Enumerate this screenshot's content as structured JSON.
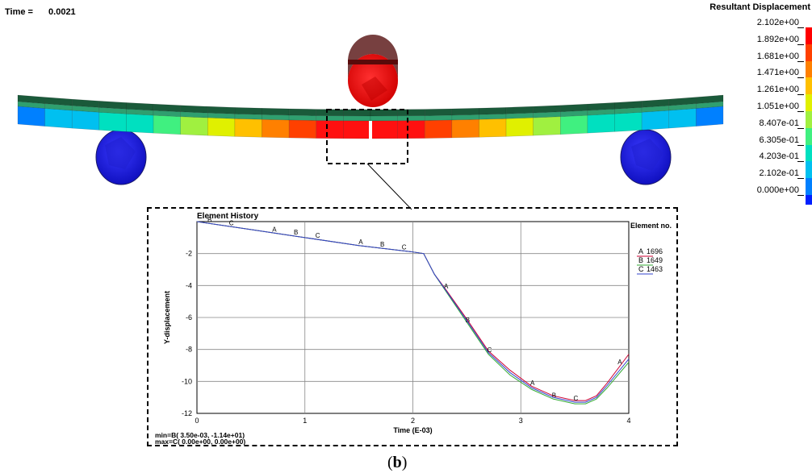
{
  "header": {
    "time_label": "Time =",
    "time_value": "0.0021"
  },
  "legend": {
    "title": "Resultant Displacement",
    "values": [
      "2.102e+00",
      "1.892e+00",
      "1.681e+00",
      "1.471e+00",
      "1.261e+00",
      "1.051e+00",
      "8.407e-01",
      "6.305e-01",
      "4.203e-01",
      "2.102e-01",
      "0.000e+00"
    ],
    "colors": [
      "#ff0000",
      "#ff4000",
      "#ff8000",
      "#ffc000",
      "#e0f000",
      "#a0f040",
      "#40f080",
      "#00e0c0",
      "#00c0f0",
      "#0080ff",
      "#0020ff"
    ]
  },
  "caption": {
    "open": "(",
    "letter": "b",
    "close": ")"
  },
  "chart_data": {
    "type": "line",
    "title": "Element History",
    "xlabel": "Time (E-03)",
    "ylabel": "Y-displacement",
    "xlim": [
      0,
      4
    ],
    "ylim": [
      -12,
      0
    ],
    "x_ticks": [
      0,
      1,
      2,
      3,
      4
    ],
    "y_ticks": [
      -2,
      -4,
      -6,
      -8,
      -10,
      -12
    ],
    "grid": true,
    "legend_title": "Element no.",
    "legend_position": "right",
    "series": [
      {
        "name": "1696",
        "marker": "A",
        "color": "#cc0033",
        "x": [
          0,
          0.5,
          1.0,
          1.5,
          2.0,
          2.1,
          2.2,
          2.3,
          2.5,
          2.7,
          2.9,
          3.1,
          3.3,
          3.5,
          3.6,
          3.7,
          3.8,
          4.0
        ],
        "y": [
          0,
          -0.5,
          -1.0,
          -1.5,
          -1.9,
          -2.0,
          -3.3,
          -4.2,
          -6.1,
          -8.1,
          -9.3,
          -10.3,
          -10.9,
          -11.2,
          -11.2,
          -10.9,
          -10.1,
          -8.3
        ],
        "marker_x": [
          0.72,
          1.52,
          2.31,
          3.11,
          3.92
        ]
      },
      {
        "name": "1649",
        "marker": "B",
        "color": "#33aa33",
        "x": [
          0,
          0.5,
          1.0,
          1.5,
          2.0,
          2.1,
          2.2,
          2.3,
          2.5,
          2.7,
          2.9,
          3.1,
          3.3,
          3.5,
          3.6,
          3.7,
          3.8,
          4.0
        ],
        "y": [
          0,
          -0.5,
          -1.0,
          -1.5,
          -1.9,
          -2.0,
          -3.3,
          -4.3,
          -6.3,
          -8.3,
          -9.6,
          -10.5,
          -11.1,
          -11.4,
          -11.4,
          -11.1,
          -10.4,
          -8.8
        ],
        "marker_x": [
          0.12,
          0.92,
          1.72,
          2.51,
          3.31
        ]
      },
      {
        "name": "1463",
        "marker": "C",
        "color": "#3344cc",
        "x": [
          0,
          0.5,
          1.0,
          1.5,
          2.0,
          2.1,
          2.2,
          2.3,
          2.5,
          2.7,
          2.9,
          3.1,
          3.3,
          3.5,
          3.6,
          3.7,
          3.8,
          4.0
        ],
        "y": [
          0,
          -0.5,
          -1.0,
          -1.5,
          -1.9,
          -2.0,
          -3.3,
          -4.25,
          -6.2,
          -8.2,
          -9.45,
          -10.4,
          -11.0,
          -11.3,
          -11.3,
          -11.0,
          -10.25,
          -8.6
        ],
        "marker_x": [
          0.32,
          1.12,
          1.92,
          2.71,
          3.51
        ]
      }
    ],
    "annotation": {
      "min_line": "min=B(    3.50e-03,   -1.14e+01)",
      "max_line": "max=C(    0.00e+00,    0.00e+00)"
    }
  }
}
